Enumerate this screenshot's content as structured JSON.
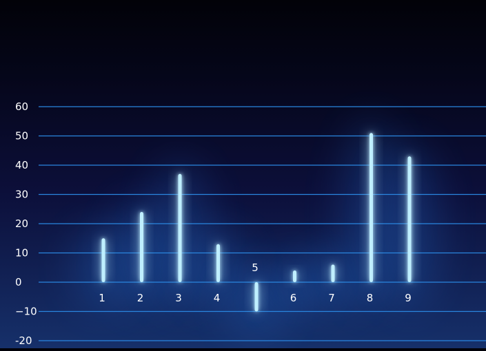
{
  "chart_data": {
    "type": "bar",
    "title": "",
    "xlabel": "",
    "ylabel": "",
    "categories": [
      "1",
      "2",
      "3",
      "4",
      "5",
      "6",
      "7",
      "8",
      "9"
    ],
    "values": [
      15,
      24,
      37,
      13,
      -10,
      4,
      6,
      51,
      43
    ],
    "ylim": [
      -20,
      60
    ],
    "yticks": [
      "-20",
      "−10",
      "0",
      "10",
      "20",
      "30",
      "40",
      "50",
      "60"
    ],
    "grid": true,
    "legend": "none",
    "colors": {
      "bar": "#bfefff",
      "glow": "#2f8cff",
      "gridline": "#2a86e0",
      "label": "#ffffff"
    }
  }
}
